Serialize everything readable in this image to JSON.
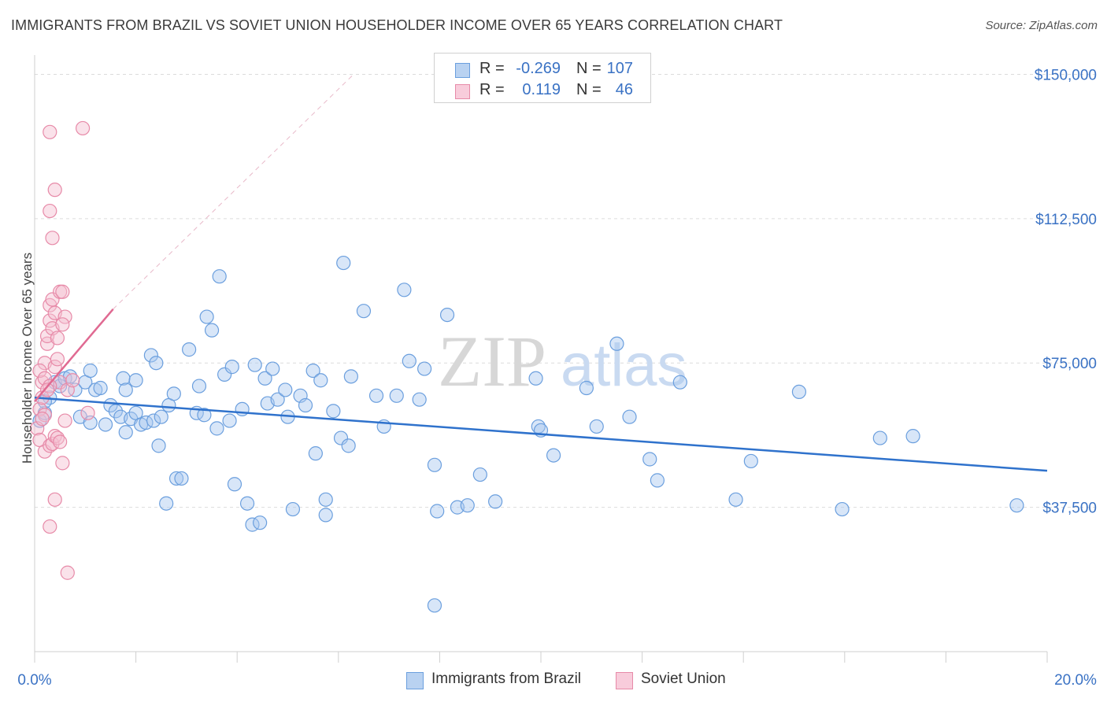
{
  "header": {
    "title": "IMMIGRANTS FROM BRAZIL VS SOVIET UNION HOUSEHOLDER INCOME OVER 65 YEARS CORRELATION CHART",
    "source": "Source: ZipAtlas.com"
  },
  "watermark": {
    "zip": "ZIP",
    "atlas": "atlas"
  },
  "legend": {
    "rows": [
      {
        "r_label": "R =",
        "r_value": "-0.269",
        "n_label": "N =",
        "n_value": "107"
      },
      {
        "r_label": "R =",
        "r_value": "0.119",
        "n_label": "N =",
        "n_value": "46"
      }
    ]
  },
  "colors": {
    "brazil": "#6b9fde",
    "brazil_fill": "#a9c8ef",
    "brazil_line": "#2f72cc",
    "soviet": "#e78aa8",
    "soviet_fill": "#f5bed0",
    "soviet_line": "#e06a92",
    "axis_text": "#3a72c4",
    "grid": "#dcdcdc"
  },
  "chart_data": {
    "type": "scatter",
    "title": "IMMIGRANTS FROM BRAZIL VS SOVIET UNION HOUSEHOLDER INCOME OVER 65 YEARS CORRELATION CHART",
    "xlabel": "",
    "ylabel": "Householder Income Over 65 years",
    "xlim": [
      0,
      20
    ],
    "ylim": [
      0,
      155000
    ],
    "x_tick_labels": [
      "0.0%",
      "20.0%"
    ],
    "y_ticks": [
      37500,
      75000,
      112500,
      150000
    ],
    "y_tick_labels": [
      "$37,500",
      "$75,000",
      "$112,500",
      "$150,000"
    ],
    "grid": true,
    "legend_position": "bottom",
    "series": [
      {
        "name": "Immigrants from Brazil",
        "r": -0.269,
        "n": 107,
        "trend": {
          "x": [
            0,
            20
          ],
          "y": [
            66000,
            47000
          ]
        },
        "points": [
          [
            0.1,
            60000
          ],
          [
            0.2,
            62000
          ],
          [
            0.3,
            66000
          ],
          [
            0.4,
            70000
          ],
          [
            0.5,
            69000
          ],
          [
            0.6,
            71000
          ],
          [
            0.7,
            71500
          ],
          [
            0.8,
            68000
          ],
          [
            0.9,
            61000
          ],
          [
            1.0,
            70000
          ],
          [
            1.1,
            59500
          ],
          [
            1.1,
            73000
          ],
          [
            1.2,
            68000
          ],
          [
            1.3,
            68500
          ],
          [
            1.4,
            59000
          ],
          [
            1.5,
            64000
          ],
          [
            1.6,
            62500
          ],
          [
            1.7,
            61000
          ],
          [
            1.75,
            71000
          ],
          [
            1.8,
            68000
          ],
          [
            1.8,
            57000
          ],
          [
            1.9,
            60500
          ],
          [
            2.0,
            62000
          ],
          [
            2.0,
            70500
          ],
          [
            2.1,
            59000
          ],
          [
            2.2,
            59500
          ],
          [
            2.3,
            77000
          ],
          [
            2.35,
            60000
          ],
          [
            2.4,
            75000
          ],
          [
            2.45,
            53500
          ],
          [
            2.5,
            61000
          ],
          [
            2.6,
            38500
          ],
          [
            2.65,
            64000
          ],
          [
            2.75,
            67000
          ],
          [
            2.8,
            45000
          ],
          [
            2.9,
            45000
          ],
          [
            3.05,
            78500
          ],
          [
            3.2,
            62000
          ],
          [
            3.25,
            69000
          ],
          [
            3.35,
            61500
          ],
          [
            3.4,
            87000
          ],
          [
            3.5,
            83500
          ],
          [
            3.6,
            58000
          ],
          [
            3.65,
            97500
          ],
          [
            3.75,
            72000
          ],
          [
            3.85,
            60000
          ],
          [
            3.9,
            74000
          ],
          [
            3.95,
            43500
          ],
          [
            4.1,
            63000
          ],
          [
            4.2,
            38500
          ],
          [
            4.3,
            33000
          ],
          [
            4.35,
            74500
          ],
          [
            4.45,
            33500
          ],
          [
            4.55,
            71000
          ],
          [
            4.6,
            64500
          ],
          [
            4.7,
            73500
          ],
          [
            4.8,
            65500
          ],
          [
            4.95,
            68000
          ],
          [
            5.0,
            61000
          ],
          [
            5.1,
            37000
          ],
          [
            5.25,
            66500
          ],
          [
            5.35,
            64000
          ],
          [
            5.5,
            73000
          ],
          [
            5.55,
            51500
          ],
          [
            5.65,
            70500
          ],
          [
            5.75,
            39500
          ],
          [
            5.75,
            35500
          ],
          [
            5.9,
            62500
          ],
          [
            6.05,
            55500
          ],
          [
            6.2,
            53500
          ],
          [
            6.25,
            71500
          ],
          [
            6.1,
            101000
          ],
          [
            6.5,
            88500
          ],
          [
            6.75,
            66500
          ],
          [
            6.9,
            58500
          ],
          [
            7.15,
            66500
          ],
          [
            7.3,
            94000
          ],
          [
            7.4,
            75500
          ],
          [
            7.6,
            65500
          ],
          [
            7.7,
            73500
          ],
          [
            7.9,
            48500
          ],
          [
            7.95,
            36500
          ],
          [
            7.9,
            12000
          ],
          [
            8.15,
            87500
          ],
          [
            8.35,
            37500
          ],
          [
            8.55,
            38000
          ],
          [
            8.8,
            46000
          ],
          [
            9.1,
            39000
          ],
          [
            9.9,
            71000
          ],
          [
            9.95,
            58500
          ],
          [
            10.0,
            57500
          ],
          [
            10.25,
            51000
          ],
          [
            10.9,
            68500
          ],
          [
            11.1,
            58500
          ],
          [
            11.5,
            80000
          ],
          [
            11.75,
            61000
          ],
          [
            12.15,
            50000
          ],
          [
            12.3,
            44500
          ],
          [
            12.75,
            70000
          ],
          [
            13.85,
            39500
          ],
          [
            14.15,
            49500
          ],
          [
            15.1,
            67500
          ],
          [
            15.95,
            37000
          ],
          [
            16.7,
            55500
          ],
          [
            17.35,
            56000
          ],
          [
            19.4,
            38000
          ],
          [
            0.2,
            65000
          ]
        ]
      },
      {
        "name": "Soviet Union",
        "r": 0.119,
        "n": 46,
        "trend": {
          "x": [
            0,
            1.55
          ],
          "y": [
            65000,
            89000
          ]
        },
        "points": [
          [
            0.05,
            58000
          ],
          [
            0.1,
            63000
          ],
          [
            0.15,
            66000
          ],
          [
            0.15,
            70000
          ],
          [
            0.2,
            75000
          ],
          [
            0.1,
            73000
          ],
          [
            0.2,
            71000
          ],
          [
            0.25,
            80000
          ],
          [
            0.25,
            82000
          ],
          [
            0.3,
            86000
          ],
          [
            0.3,
            90000
          ],
          [
            0.35,
            84000
          ],
          [
            0.35,
            91500
          ],
          [
            0.4,
            88000
          ],
          [
            0.45,
            81500
          ],
          [
            0.5,
            93500
          ],
          [
            0.55,
            93500
          ],
          [
            0.6,
            87000
          ],
          [
            0.55,
            85000
          ],
          [
            0.4,
            74000
          ],
          [
            0.45,
            76000
          ],
          [
            0.5,
            70000
          ],
          [
            0.3,
            69000
          ],
          [
            0.25,
            68000
          ],
          [
            0.2,
            61500
          ],
          [
            0.15,
            60500
          ],
          [
            0.1,
            55000
          ],
          [
            0.2,
            52000
          ],
          [
            0.3,
            53500
          ],
          [
            0.35,
            54000
          ],
          [
            0.4,
            56000
          ],
          [
            0.45,
            55500
          ],
          [
            0.5,
            54500
          ],
          [
            0.55,
            49000
          ],
          [
            0.6,
            60000
          ],
          [
            0.4,
            39500
          ],
          [
            0.3,
            32500
          ],
          [
            0.65,
            20500
          ],
          [
            0.3,
            114500
          ],
          [
            0.35,
            107500
          ],
          [
            0.4,
            120000
          ],
          [
            0.3,
            135000
          ],
          [
            0.95,
            136000
          ],
          [
            0.65,
            68000
          ],
          [
            0.75,
            70500
          ],
          [
            1.05,
            62000
          ]
        ]
      }
    ]
  },
  "bottom_legend": {
    "items": [
      {
        "label": "Immigrants from Brazil"
      },
      {
        "label": "Soviet Union"
      }
    ]
  }
}
